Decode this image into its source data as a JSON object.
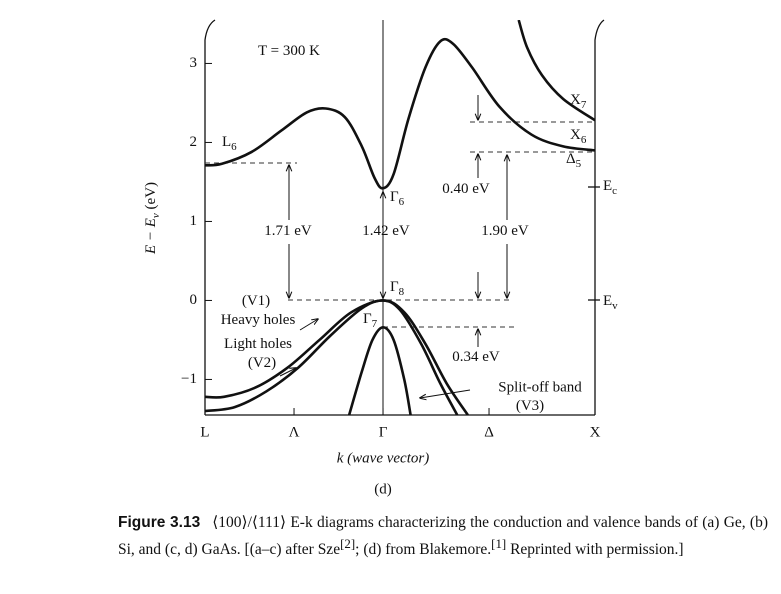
{
  "chart_data": {
    "type": "line",
    "ylabel": {
      "text": "E − E",
      "sub": "v",
      "rest": " (eV)"
    },
    "xlabel": "k (wave vector)",
    "panel": "(d)",
    "xlim": [
      -0.84,
      1
    ],
    "xticks": [
      {
        "value": -0.84,
        "label": "L"
      },
      {
        "value": -0.42,
        "label": "Λ"
      },
      {
        "value": 0,
        "label": "Γ"
      },
      {
        "value": 0.5,
        "label": "Δ"
      },
      {
        "value": 1,
        "label": "X"
      }
    ],
    "ylim": [
      -1.45,
      3.55
    ],
    "yticks": [
      {
        "value": -1,
        "label": "−1"
      },
      0,
      1,
      2,
      3
    ],
    "color": "#111111",
    "series": [
      {
        "x": [
          -0.84,
          -0.76,
          -0.62,
          -0.48,
          -0.36,
          -0.27,
          -0.18,
          -0.1,
          -0.04,
          0,
          0.05,
          0.12,
          0.2,
          0.27,
          0.33,
          0.42,
          0.55,
          0.7,
          0.85,
          1
        ],
        "values": [
          1.71,
          1.73,
          1.88,
          2.15,
          2.38,
          2.43,
          2.32,
          1.95,
          1.55,
          1.42,
          1.6,
          2.3,
          2.95,
          3.28,
          3.25,
          2.95,
          2.45,
          2.1,
          1.95,
          1.9
        ]
      },
      {
        "x": [
          0.64,
          0.68,
          0.75,
          0.85,
          1
        ],
        "values": [
          3.55,
          3.2,
          2.85,
          2.55,
          2.28
        ]
      },
      {
        "name": "Heavy holes",
        "x": [
          -0.84,
          -0.75,
          -0.6,
          -0.45,
          -0.3,
          -0.15,
          0,
          0.1,
          0.2,
          0.3,
          0.4
        ],
        "values": [
          -1.22,
          -1.22,
          -1.1,
          -0.85,
          -0.5,
          -0.15,
          0,
          -0.15,
          -0.55,
          -1.05,
          -1.45
        ]
      },
      {
        "name": "Light holes",
        "x": [
          -0.84,
          -0.7,
          -0.55,
          -0.4,
          -0.25,
          -0.1,
          0,
          0.08,
          0.18,
          0.27,
          0.35
        ],
        "values": [
          -1.4,
          -1.35,
          -1.15,
          -0.85,
          -0.45,
          -0.1,
          0,
          -0.12,
          -0.55,
          -1.05,
          -1.45
        ]
      },
      {
        "name": "Split-off band",
        "x": [
          -0.16,
          -0.1,
          -0.05,
          0,
          0.05,
          0.1,
          0.13
        ],
        "values": [
          -1.45,
          -0.9,
          -0.5,
          -0.34,
          -0.5,
          -1.0,
          -1.45
        ]
      }
    ],
    "annotations": [
      {
        "text": "T = 300 K"
      },
      {
        "text": "L",
        "sub": "6"
      },
      {
        "text": "Γ",
        "sub": "6"
      },
      {
        "text": "Γ",
        "sub": "8"
      },
      {
        "text": "Γ",
        "sub": "7"
      },
      {
        "text": "X",
        "sub": "7"
      },
      {
        "text": "X",
        "sub": "6"
      },
      {
        "text": "Δ",
        "sub": "5"
      },
      {
        "text": "E",
        "sub": "c"
      },
      {
        "text": "E",
        "sub": "v"
      },
      {
        "text": "1.71 eV"
      },
      {
        "text": "1.42 eV"
      },
      {
        "text": "1.90 eV"
      },
      {
        "text": "0.40 eV"
      },
      {
        "text": "0.34 eV"
      },
      {
        "text": "(V1)"
      },
      {
        "text": "Heavy holes"
      },
      {
        "text": "Light holes"
      },
      {
        "text": "(V2)"
      },
      {
        "text": "(V3)"
      }
    ]
  },
  "caption": {
    "label": "Figure 3.13",
    "parts": [
      "⟨100⟩/⟨111⟩ E-k diagrams characterizing the conduction and valence bands of (a) Ge, (b) Si, and (c, d) GaAs. [(a–c) after Sze",
      "[2]",
      "; (d) from Blakemore.",
      "[1]",
      " Reprinted with permission.]"
    ]
  }
}
